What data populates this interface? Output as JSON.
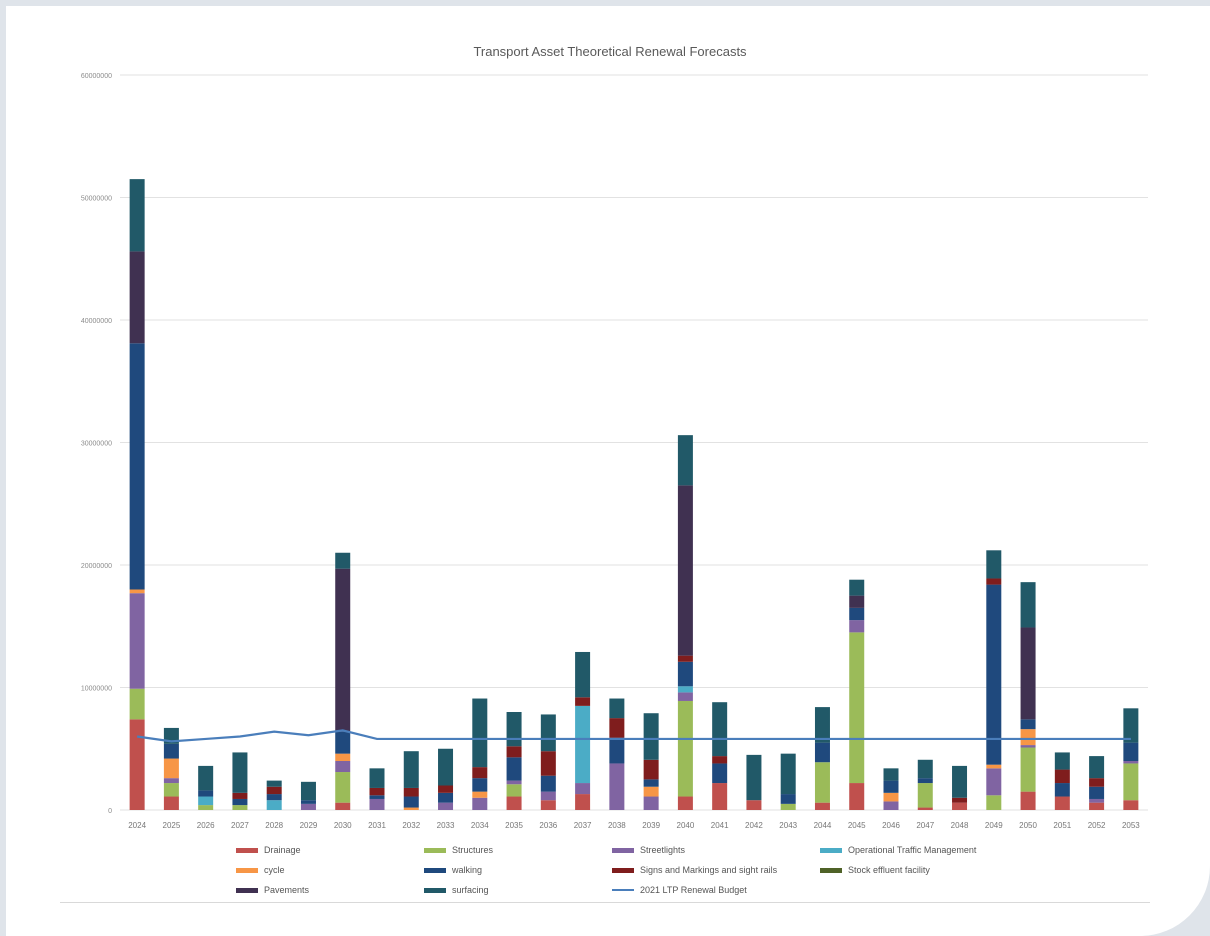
{
  "chart_data": {
    "type": "bar",
    "stacked": true,
    "title": "Transport Asset Theoretical Renewal Forecasts",
    "xlabel": "",
    "ylabel": "",
    "ylim": [
      0,
      60000000
    ],
    "yticks": [
      0,
      10000000,
      20000000,
      30000000,
      40000000,
      50000000,
      60000000
    ],
    "ytick_labels": [
      "0",
      "10000000",
      "20000000",
      "30000000",
      "40000000",
      "50000000",
      "60000000"
    ],
    "grid": true,
    "legend_position": "bottom",
    "categories": [
      "2024",
      "2025",
      "2026",
      "2027",
      "2028",
      "2029",
      "2030",
      "2031",
      "2032",
      "2033",
      "2034",
      "2035",
      "2036",
      "2037",
      "2038",
      "2039",
      "2040",
      "2041",
      "2042",
      "2043",
      "2044",
      "2045",
      "2046",
      "2047",
      "2048",
      "2049",
      "2050",
      "2051",
      "2052",
      "2053"
    ],
    "series": [
      {
        "name": "Drainage",
        "color": "#c0504d",
        "values": [
          7400000,
          1100000,
          0,
          0,
          0,
          0,
          600000,
          0,
          0,
          0,
          0,
          1100000,
          800000,
          1300000,
          0,
          0,
          1100000,
          2200000,
          800000,
          0,
          600000,
          2200000,
          0,
          200000,
          600000,
          0,
          1500000,
          1100000,
          600000,
          800000
        ]
      },
      {
        "name": "Structures",
        "color": "#9bbb59",
        "values": [
          2500000,
          1100000,
          400000,
          400000,
          0,
          0,
          2500000,
          0,
          0,
          0,
          0,
          1000000,
          0,
          0,
          0,
          0,
          7800000,
          0,
          0,
          500000,
          3300000,
          12300000,
          0,
          2000000,
          0,
          1200000,
          3600000,
          0,
          0,
          3000000
        ]
      },
      {
        "name": "Streetlights",
        "color": "#8064a2",
        "values": [
          7800000,
          400000,
          0,
          0,
          0,
          500000,
          900000,
          900000,
          0,
          600000,
          1000000,
          300000,
          700000,
          900000,
          3800000,
          1100000,
          700000,
          0,
          0,
          0,
          0,
          1000000,
          700000,
          0,
          0,
          2200000,
          200000,
          0,
          300000,
          200000
        ]
      },
      {
        "name": "Operational Traffic Management",
        "color": "#4bacc6",
        "values": [
          0,
          0,
          700000,
          0,
          800000,
          0,
          0,
          0,
          0,
          0,
          0,
          0,
          0,
          6300000,
          0,
          0,
          500000,
          0,
          0,
          0,
          0,
          0,
          0,
          0,
          0,
          0,
          0,
          0,
          0,
          0
        ]
      },
      {
        "name": "cycle",
        "color": "#f79646",
        "values": [
          300000,
          1600000,
          0,
          0,
          0,
          0,
          600000,
          0,
          200000,
          0,
          500000,
          0,
          0,
          0,
          0,
          800000,
          0,
          0,
          0,
          0,
          0,
          0,
          700000,
          0,
          0,
          300000,
          1300000,
          0,
          0,
          0
        ]
      },
      {
        "name": "walking",
        "color": "#1f497d",
        "values": [
          20100000,
          1200000,
          500000,
          500000,
          500000,
          300000,
          1800000,
          300000,
          900000,
          800000,
          1100000,
          1900000,
          1300000,
          0,
          2100000,
          600000,
          2000000,
          1600000,
          0,
          800000,
          1600000,
          1000000,
          1000000,
          400000,
          0,
          14700000,
          800000,
          1100000,
          1000000,
          1500000
        ]
      },
      {
        "name": "Signs and Markings and sight rails",
        "color": "#7f1d1d",
        "values": [
          0,
          0,
          0,
          500000,
          600000,
          0,
          0,
          600000,
          700000,
          600000,
          900000,
          900000,
          2000000,
          700000,
          1600000,
          1600000,
          500000,
          600000,
          0,
          0,
          0,
          0,
          0,
          0,
          400000,
          500000,
          0,
          1100000,
          700000,
          0
        ]
      },
      {
        "name": "Stock effluent facility",
        "color": "#4f6228",
        "values": [
          0,
          0,
          0,
          0,
          0,
          0,
          0,
          0,
          0,
          0,
          0,
          0,
          0,
          0,
          0,
          0,
          0,
          0,
          0,
          0,
          0,
          0,
          0,
          0,
          0,
          0,
          0,
          0,
          0,
          0
        ]
      },
      {
        "name": "Pavements",
        "color": "#403151",
        "values": [
          7500000,
          0,
          0,
          0,
          0,
          0,
          13300000,
          0,
          0,
          0,
          0,
          0,
          0,
          0,
          0,
          0,
          13900000,
          0,
          0,
          0,
          0,
          1000000,
          0,
          0,
          0,
          0,
          7500000,
          0,
          0,
          0
        ]
      },
      {
        "name": "surfacing",
        "color": "#215968",
        "values": [
          5900000,
          1300000,
          2000000,
          3300000,
          500000,
          1500000,
          1300000,
          1600000,
          3000000,
          3000000,
          5600000,
          2800000,
          3000000,
          3700000,
          1600000,
          3800000,
          4100000,
          4400000,
          3700000,
          3300000,
          2900000,
          1300000,
          1000000,
          1500000,
          2600000,
          2300000,
          3700000,
          1400000,
          1800000,
          2800000
        ]
      }
    ],
    "line_series": {
      "name": "2021 LTP Renewal Budget",
      "color": "#4a7ebb",
      "values": [
        6000000,
        5600000,
        5800000,
        6000000,
        6400000,
        6100000,
        6500000,
        5800000,
        5800000,
        5800000,
        5800000,
        5800000,
        5800000,
        5800000,
        5800000,
        5800000,
        5800000,
        5800000,
        5800000,
        5800000,
        5800000,
        5800000,
        5800000,
        5800000,
        5800000,
        5800000,
        5800000,
        5800000,
        5800000,
        5800000
      ]
    }
  }
}
